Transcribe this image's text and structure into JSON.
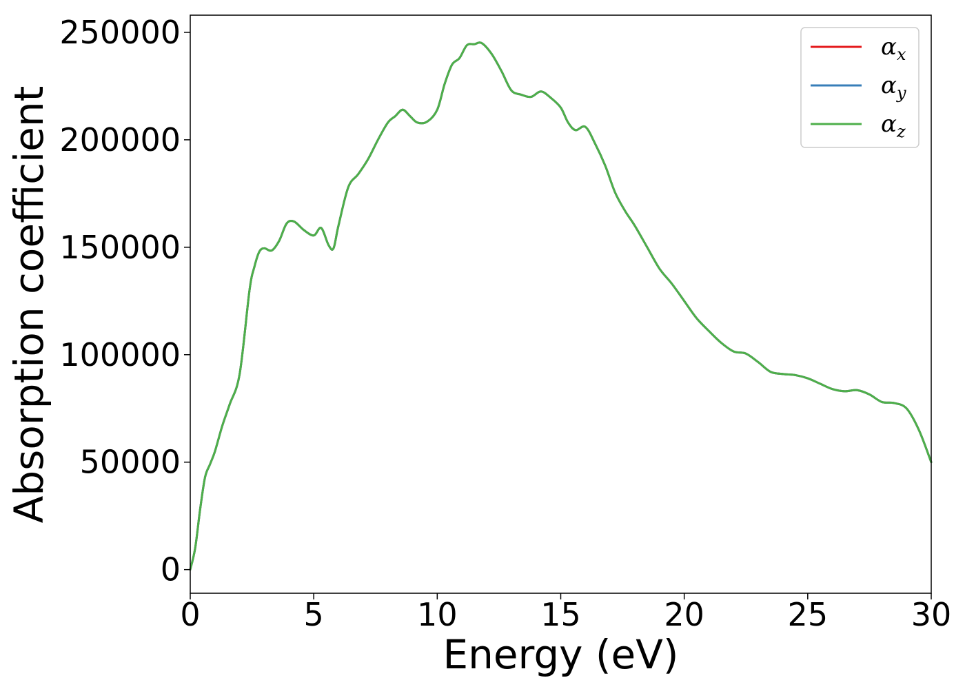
{
  "chart_data": {
    "type": "line",
    "title": "",
    "xlabel": "Energy (eV)",
    "ylabel": "Absorption coefficient",
    "xlim": [
      0,
      30
    ],
    "ylim": [
      -11000,
      258000
    ],
    "xticks": [
      "0",
      "5",
      "10",
      "15",
      "20",
      "25",
      "30"
    ],
    "yticks": [
      "0",
      "50000",
      "100000",
      "150000",
      "200000",
      "250000"
    ],
    "grid": false,
    "legend_position": "top-right",
    "x": [
      0,
      0.2,
      0.4,
      0.6,
      0.8,
      1.0,
      1.3,
      1.6,
      2.0,
      2.4,
      2.6,
      2.8,
      3.0,
      3.3,
      3.6,
      3.9,
      4.2,
      4.6,
      5.0,
      5.3,
      5.6,
      5.8,
      6.0,
      6.4,
      6.8,
      7.2,
      7.6,
      8.0,
      8.3,
      8.6,
      8.9,
      9.2,
      9.6,
      10.0,
      10.3,
      10.6,
      10.9,
      11.2,
      11.5,
      11.8,
      12.2,
      12.6,
      13.0,
      13.4,
      13.8,
      14.2,
      14.6,
      15.0,
      15.3,
      15.6,
      16.0,
      16.4,
      16.8,
      17.2,
      17.6,
      18.0,
      18.5,
      19.0,
      19.5,
      20.0,
      20.5,
      21.0,
      21.5,
      22.0,
      22.5,
      23.0,
      23.5,
      24.0,
      24.5,
      25.0,
      25.5,
      26.0,
      26.5,
      27.0,
      27.5,
      28.0,
      28.5,
      29.0,
      29.5,
      30.0
    ],
    "series": [
      {
        "name": "α",
        "name_sub": "x",
        "color": "#e41a1c",
        "values": [
          0,
          10000,
          28000,
          43000,
          49000,
          55000,
          67000,
          77000,
          91000,
          130000,
          141000,
          148000,
          149500,
          148500,
          153000,
          161000,
          162000,
          158000,
          155500,
          159000,
          151000,
          149500,
          160000,
          178000,
          184000,
          191000,
          200000,
          208000,
          211000,
          214000,
          211000,
          208000,
          208500,
          214000,
          226000,
          235000,
          238000,
          244000,
          244500,
          245000,
          240000,
          232000,
          223000,
          221000,
          220000,
          222500,
          219500,
          215000,
          208000,
          204500,
          206000,
          198000,
          188000,
          175500,
          167000,
          160000,
          150000,
          140000,
          133000,
          125000,
          117000,
          111000,
          105500,
          101500,
          100500,
          96500,
          92000,
          91000,
          90500,
          89000,
          86500,
          84000,
          83000,
          83500,
          81500,
          78000,
          77500,
          75000,
          65000,
          50000
        ]
      },
      {
        "name": "α",
        "name_sub": "y",
        "color": "#377eb8",
        "values": [
          0,
          10000,
          28000,
          43000,
          49000,
          55000,
          67000,
          77000,
          91000,
          130000,
          141000,
          148000,
          149500,
          148500,
          153000,
          161000,
          162000,
          158000,
          155500,
          159000,
          151000,
          149500,
          160000,
          178000,
          184000,
          191000,
          200000,
          208000,
          211000,
          214000,
          211000,
          208000,
          208500,
          214000,
          226000,
          235000,
          238000,
          244000,
          244500,
          245000,
          240000,
          232000,
          223000,
          221000,
          220000,
          222500,
          219500,
          215000,
          208000,
          204500,
          206000,
          198000,
          188000,
          175500,
          167000,
          160000,
          150000,
          140000,
          133000,
          125000,
          117000,
          111000,
          105500,
          101500,
          100500,
          96500,
          92000,
          91000,
          90500,
          89000,
          86500,
          84000,
          83000,
          83500,
          81500,
          78000,
          77500,
          75000,
          65000,
          50000
        ]
      },
      {
        "name": "α",
        "name_sub": "z",
        "color": "#4daf4a",
        "values": [
          0,
          10000,
          28000,
          43000,
          49000,
          55000,
          67000,
          77000,
          91000,
          130000,
          141000,
          148000,
          149500,
          148500,
          153000,
          161000,
          162000,
          158000,
          155500,
          159000,
          151000,
          149500,
          160000,
          178000,
          184000,
          191000,
          200000,
          208000,
          211000,
          214000,
          211000,
          208000,
          208500,
          214000,
          226000,
          235000,
          238000,
          244000,
          244500,
          245000,
          240000,
          232000,
          223000,
          221000,
          220000,
          222500,
          219500,
          215000,
          208000,
          204500,
          206000,
          198000,
          188000,
          175500,
          167000,
          160000,
          150000,
          140000,
          133000,
          125000,
          117000,
          111000,
          105500,
          101500,
          100500,
          96500,
          92000,
          91000,
          90500,
          89000,
          86500,
          84000,
          83000,
          83500,
          81500,
          78000,
          77500,
          75000,
          65000,
          50000
        ]
      }
    ]
  }
}
